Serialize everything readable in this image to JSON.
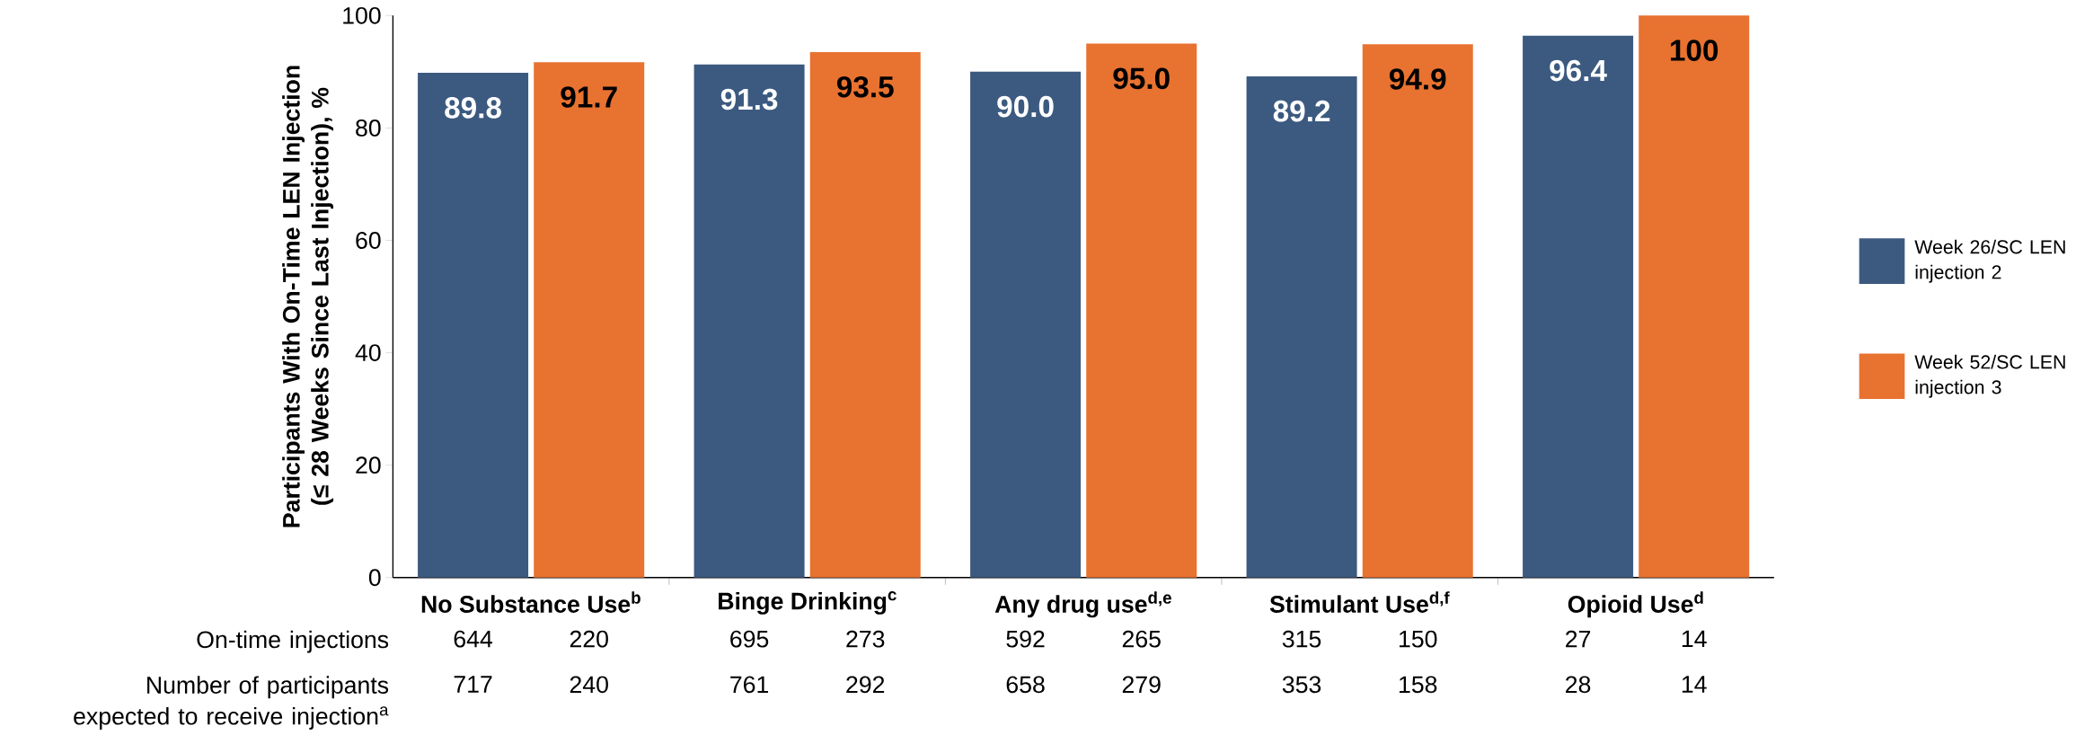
{
  "chart_data": {
    "type": "bar",
    "ylabel": "Participants With On-Time LEN Injection (≤ 28 Weeks Since Last Injection), %",
    "categories": [
      "No Substance Use$^{b}$",
      "Binge Drinking$^{c}$",
      "Any drug use$^{d,e}$",
      "Stimulant Use$^{d,f}$",
      "Opioid Use$^{d}$"
    ],
    "series": [
      {
        "name": "Week 26/SC LEN injection 2",
        "color": "#3c5a80",
        "values": [
          89.8,
          91.3,
          90.0,
          89.2,
          96.4
        ],
        "value_labels": [
          "89.8",
          "91.3",
          "90.0",
          "89.2",
          "96.4"
        ]
      },
      {
        "name": "Week 52/SC LEN injection 3",
        "color": "#e87230",
        "values": [
          91.7,
          93.5,
          95.0,
          94.9,
          100
        ],
        "value_labels": [
          "91.7",
          "93.5",
          "95.0",
          "94.9",
          "100"
        ]
      }
    ],
    "ylim": [
      0,
      100
    ],
    "yticks": [
      0,
      20,
      40,
      60,
      80,
      100
    ],
    "grid": false,
    "legend": "right",
    "annotations": [
      "On-time injections",
      "644",
      "220",
      "695",
      "273",
      "592",
      "265",
      "315",
      "150",
      "27",
      "14",
      "Number of participants expected to receive injection$^{a}$",
      "717",
      "240",
      "761",
      "292",
      "658",
      "279",
      "353",
      "158",
      "28",
      "14"
    ]
  }
}
